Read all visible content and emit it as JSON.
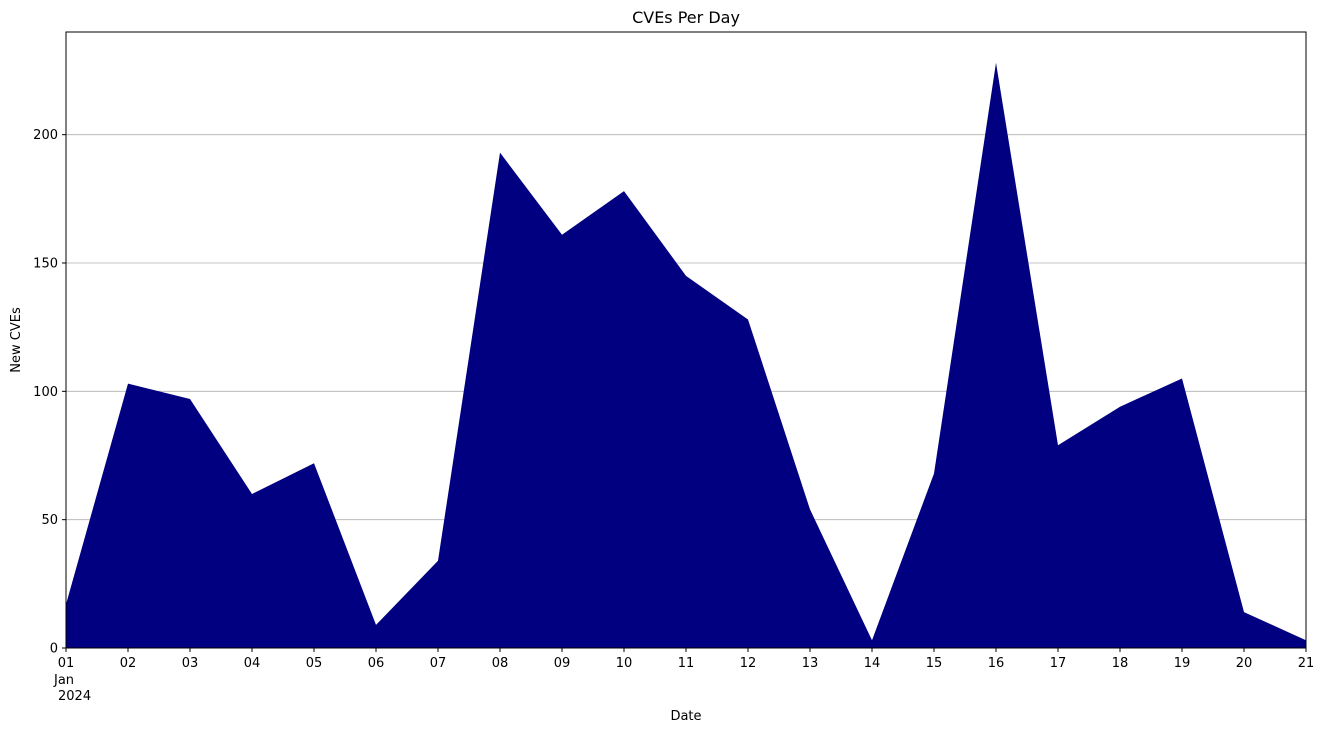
{
  "chart_data": {
    "type": "area",
    "title": "CVEs Per Day",
    "xlabel": "Date",
    "ylabel": "New CVEs",
    "x": [
      "2024-01-01",
      "2024-01-02",
      "2024-01-03",
      "2024-01-04",
      "2024-01-05",
      "2024-01-06",
      "2024-01-07",
      "2024-01-08",
      "2024-01-09",
      "2024-01-10",
      "2024-01-11",
      "2024-01-12",
      "2024-01-13",
      "2024-01-14",
      "2024-01-15",
      "2024-01-16",
      "2024-01-17",
      "2024-01-18",
      "2024-01-19",
      "2024-01-20",
      "2024-01-21"
    ],
    "x_tick_labels": [
      "01",
      "02",
      "03",
      "04",
      "05",
      "06",
      "07",
      "08",
      "09",
      "10",
      "11",
      "12",
      "13",
      "14",
      "15",
      "16",
      "17",
      "18",
      "19",
      "20",
      "21"
    ],
    "x_tick_sublabels": [
      "Jan",
      "2024"
    ],
    "values": [
      17,
      103,
      97,
      60,
      72,
      9,
      34,
      193,
      161,
      178,
      145,
      128,
      54,
      3,
      68,
      228,
      79,
      94,
      105,
      14,
      3
    ],
    "ylim": [
      0,
      240
    ],
    "y_ticks": [
      0,
      50,
      100,
      150,
      200
    ],
    "grid": "y",
    "fill_color": "#000080",
    "grid_color": "#b0b0b0"
  }
}
